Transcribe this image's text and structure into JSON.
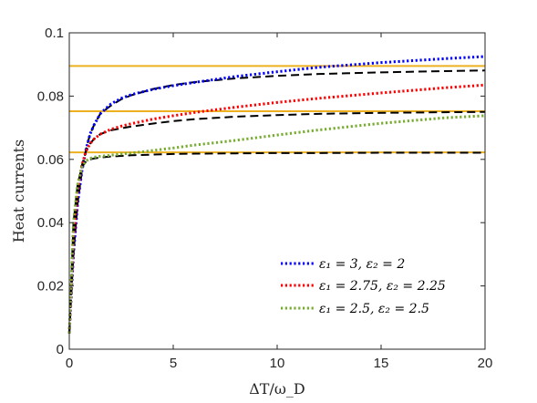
{
  "chart_data": {
    "type": "line",
    "xlabel": "ΔT/ω_D",
    "ylabel": "Heat currents",
    "xlim": [
      0,
      20
    ],
    "ylim": [
      0,
      0.1
    ],
    "xticks": [
      0,
      5,
      10,
      15,
      20
    ],
    "xtick_labels": [
      "0",
      "5",
      "10",
      "15",
      "20"
    ],
    "yticks": [
      0,
      0.02,
      0.04,
      0.06,
      0.08,
      0.1
    ],
    "ytick_labels": [
      "0",
      "0.02",
      "0.04",
      "0.06",
      "0.08",
      "0.1"
    ],
    "grid": false,
    "legend_position": "bottom-right",
    "series": [
      {
        "name": "ε1 = 3, ε2 = 2",
        "color": "#0000ff",
        "style": "dotted",
        "x": [
          0,
          0.2,
          0.4,
          0.6,
          0.8,
          1,
          1.2,
          1.5,
          2,
          2.5,
          3,
          4,
          5,
          6,
          8,
          10,
          12,
          15,
          18,
          20
        ],
        "y": [
          0.005,
          0.03,
          0.046,
          0.056,
          0.063,
          0.068,
          0.071,
          0.0745,
          0.0775,
          0.0793,
          0.0805,
          0.0821,
          0.0833,
          0.0843,
          0.0862,
          0.0877,
          0.0891,
          0.0906,
          0.0918,
          0.0925
        ]
      },
      {
        "name": "ε1 = 2.75, ε2 = 2.25",
        "color": "#ff0000",
        "style": "dotted",
        "x": [
          0,
          0.2,
          0.4,
          0.6,
          0.8,
          1,
          1.2,
          1.5,
          2,
          2.5,
          3,
          4,
          5,
          6,
          8,
          10,
          12,
          15,
          18,
          20
        ],
        "y": [
          0.005,
          0.035,
          0.05,
          0.058,
          0.0625,
          0.065,
          0.0665,
          0.068,
          0.0695,
          0.0705,
          0.0713,
          0.0727,
          0.0738,
          0.0748,
          0.0765,
          0.078,
          0.0793,
          0.081,
          0.0826,
          0.0835
        ]
      },
      {
        "name": "ε1 = 2.5, ε2 = 2.5",
        "color": "#77ac30",
        "style": "dotted",
        "x": [
          0,
          0.2,
          0.4,
          0.6,
          0.8,
          1,
          1.2,
          1.5,
          2,
          2.5,
          3,
          4,
          5,
          6,
          8,
          10,
          12,
          15,
          18,
          20
        ],
        "y": [
          0.005,
          0.04,
          0.052,
          0.0575,
          0.0595,
          0.0603,
          0.0607,
          0.061,
          0.0613,
          0.0617,
          0.062,
          0.0628,
          0.0636,
          0.0645,
          0.066,
          0.0677,
          0.0693,
          0.0714,
          0.0731,
          0.0738
        ]
      },
      {
        "name": "",
        "color": "#000000",
        "style": "dashed",
        "x": [
          0,
          0.2,
          0.4,
          0.6,
          0.8,
          1,
          1.2,
          1.5,
          2,
          2.5,
          3,
          4,
          5,
          6,
          8,
          10,
          12,
          15,
          18,
          20
        ],
        "y": [
          0.005,
          0.03,
          0.046,
          0.056,
          0.063,
          0.068,
          0.071,
          0.0745,
          0.077,
          0.079,
          0.0803,
          0.0822,
          0.0835,
          0.0844,
          0.0856,
          0.0864,
          0.087,
          0.0875,
          0.0879,
          0.0881
        ]
      },
      {
        "name": "",
        "color": "#000000",
        "style": "dashed",
        "x": [
          0,
          0.2,
          0.4,
          0.6,
          0.8,
          1,
          1.2,
          1.5,
          2,
          2.5,
          3,
          4,
          5,
          6,
          8,
          10,
          12,
          15,
          18,
          20
        ],
        "y": [
          0.005,
          0.035,
          0.05,
          0.058,
          0.0625,
          0.065,
          0.0665,
          0.068,
          0.0692,
          0.0698,
          0.0704,
          0.0713,
          0.0721,
          0.0727,
          0.0735,
          0.074,
          0.0744,
          0.0747,
          0.0749,
          0.075
        ]
      },
      {
        "name": "",
        "color": "#000000",
        "style": "dashed",
        "x": [
          0,
          0.2,
          0.4,
          0.6,
          0.8,
          1,
          1.2,
          1.5,
          2,
          2.5,
          3,
          4,
          5,
          6,
          8,
          10,
          12,
          15,
          18,
          20
        ],
        "y": [
          0.005,
          0.04,
          0.052,
          0.0575,
          0.0593,
          0.06,
          0.0603,
          0.0606,
          0.0609,
          0.0611,
          0.0613,
          0.0615,
          0.0617,
          0.0618,
          0.0619,
          0.062,
          0.062,
          0.0621,
          0.0621,
          0.0621
        ]
      }
    ],
    "hlines": [
      {
        "y": 0.0895,
        "color": "#edb120"
      },
      {
        "y": 0.0752,
        "color": "#edb120"
      },
      {
        "y": 0.0622,
        "color": "#edb120"
      }
    ],
    "legend": [
      {
        "label": "ε₁ = 3, ε₂ = 2",
        "color": "#0000ff"
      },
      {
        "label": "ε₁ = 2.75, ε₂ = 2.25",
        "color": "#ff0000"
      },
      {
        "label": "ε₁ = 2.5, ε₂ = 2.5",
        "color": "#77ac30"
      }
    ]
  }
}
